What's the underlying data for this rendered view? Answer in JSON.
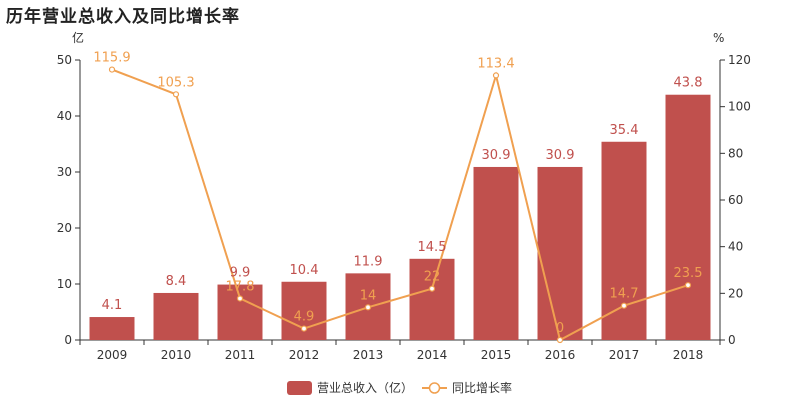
{
  "title": "历年营业总收入及同比增长率",
  "chart_data": {
    "type": "bar",
    "title": "历年营业总收入及同比增长率",
    "categories": [
      "2009",
      "2010",
      "2011",
      "2012",
      "2013",
      "2014",
      "2015",
      "2016",
      "2017",
      "2018"
    ],
    "series": [
      {
        "name": "营业总收入（亿）",
        "type": "bar",
        "axis": "left",
        "color": "#c0504d",
        "values": [
          4.1,
          8.4,
          9.9,
          10.4,
          11.9,
          14.5,
          30.9,
          30.9,
          35.4,
          43.8
        ]
      },
      {
        "name": "同比增长率",
        "type": "line",
        "axis": "right",
        "color": "#f0a050",
        "values": [
          115.9,
          105.3,
          17.8,
          4.9,
          14,
          22,
          113.4,
          0,
          14.7,
          23.5
        ]
      }
    ],
    "ylabel_left": "亿",
    "ylabel_right": "%",
    "ylim_left": [
      0,
      50
    ],
    "ylim_right": [
      0,
      120
    ],
    "yticks_left": [
      0,
      10,
      20,
      30,
      40,
      50
    ],
    "yticks_right": [
      0,
      20,
      40,
      60,
      80,
      100,
      120
    ],
    "grid": false,
    "legend_position": "bottom-center"
  }
}
